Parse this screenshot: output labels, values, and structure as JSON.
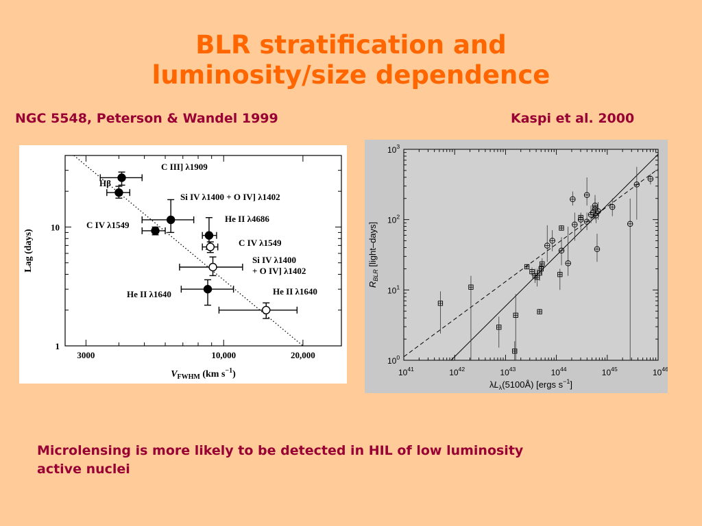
{
  "slide": {
    "title_line1": "BLR stratification and",
    "title_line2": "luminosity/size dependence",
    "left_caption": "NGC 5548, Peterson & Wandel  1999",
    "right_caption": "Kaspi et al. 2000",
    "footer_line1": "Microlensing is more likely to be detected in HIL of low luminosity",
    "footer_line2": "active nuclei"
  },
  "chart_data": [
    {
      "type": "scatter",
      "title": "",
      "xlabel": "V_FWHM (km s^-1)",
      "ylabel": "Lag (days)",
      "x_scale": "log",
      "y_scale": "log",
      "xlim": [
        2500,
        28000
      ],
      "ylim": [
        1,
        40
      ],
      "x_ticks": [
        {
          "value": 3000,
          "label": "3000"
        },
        {
          "value": 10000,
          "label": "10,000"
        },
        {
          "value": 20000,
          "label": "20,000"
        }
      ],
      "y_ticks": [
        {
          "value": 1,
          "label": "1"
        },
        {
          "value": 10,
          "label": "10"
        }
      ],
      "fit_line": {
        "style": "dotted",
        "x": [
          2700,
          20000
        ],
        "y": [
          40,
          1
        ]
      },
      "points": [
        {
          "label": "C III] λ1909",
          "x": 4100,
          "y": 26,
          "xerr": [
            3400,
            4900
          ],
          "yerr": [
            22.5,
            29
          ],
          "filled": true
        },
        {
          "label": "Hβ",
          "x": 4000,
          "y": 19.5,
          "xerr": [
            3600,
            4400
          ],
          "yerr": [
            17.5,
            22
          ],
          "filled": true
        },
        {
          "label": "Si IV λ1400 + O IV] λ1402",
          "x": 6300,
          "y": 11.5,
          "xerr": [
            4900,
            7700
          ],
          "yerr": [
            9,
            17
          ],
          "filled": true
        },
        {
          "label": "C IV λ1549",
          "x": 5500,
          "y": 9.3,
          "xerr": [
            4900,
            6000
          ],
          "yerr": [
            8.6,
            10
          ],
          "filled": true
        },
        {
          "label": "He II λ4686",
          "x": 8800,
          "y": 8.5,
          "xerr": [
            8300,
            9400
          ],
          "yerr": [
            6.5,
            12
          ],
          "filled": true
        },
        {
          "label": "C IV λ1549",
          "x": 8900,
          "y": 6.8,
          "xerr": [
            8300,
            9500
          ],
          "yerr": [
            6.1,
            7.5
          ],
          "filled": false
        },
        {
          "label": "Si IV λ1400 + O IV] λ1402",
          "x": 9100,
          "y": 4.6,
          "xerr": [
            6800,
            11800
          ],
          "yerr": [
            3.9,
            5.6
          ],
          "filled": false
        },
        {
          "label": "He II λ1640",
          "x": 8700,
          "y": 3,
          "xerr": [
            6900,
            10900
          ],
          "yerr": [
            2.2,
            3.6
          ],
          "filled": true
        },
        {
          "label": "He II λ1640",
          "x": 14500,
          "y": 2,
          "xerr": [
            9600,
            19000
          ],
          "yerr": [
            1.7,
            2.3
          ],
          "filled": false
        }
      ]
    },
    {
      "type": "scatter",
      "title": "",
      "xlabel": "λL_λ(5100Å) [ergs s^-1]",
      "ylabel": "R_BLR [light-days]",
      "x_scale": "log",
      "y_scale": "log",
      "xlim": [
        1e+41,
        1e+46
      ],
      "ylim": [
        1,
        1000
      ],
      "x_ticks": [
        {
          "exp": 41,
          "label": "10",
          "sup": "41"
        },
        {
          "exp": 42,
          "label": "10",
          "sup": "42"
        },
        {
          "exp": 43,
          "label": "10",
          "sup": "43"
        },
        {
          "exp": 44,
          "label": "10",
          "sup": "44"
        },
        {
          "exp": 45,
          "label": "10",
          "sup": "45"
        },
        {
          "exp": 46,
          "label": "10",
          "sup": "46"
        }
      ],
      "y_ticks": [
        {
          "exp": 0,
          "label": "10",
          "sup": "0"
        },
        {
          "exp": 1,
          "label": "10",
          "sup": "1"
        },
        {
          "exp": 2,
          "label": "10",
          "sup": "2"
        },
        {
          "exp": 3,
          "label": "10",
          "sup": "3"
        }
      ],
      "fit_lines": [
        {
          "style": "solid",
          "logx": [
            41.93,
            46
          ],
          "logy": [
            0,
            2.93
          ]
        },
        {
          "style": "dashed",
          "logx": [
            41,
            46
          ],
          "logy": [
            0.05,
            2.72
          ]
        }
      ],
      "series": [
        {
          "marker": "square",
          "points": [
            {
              "logx": 41.72,
              "logy": 0.81,
              "ylo": 0.38,
              "yhi": 0.98
            },
            {
              "logx": 42.32,
              "logy": 1.04,
              "ylo": -0.2,
              "yhi": 1.2
            },
            {
              "logx": 42.87,
              "logy": 0.47,
              "ylo": 0.18,
              "yhi": 0.62
            },
            {
              "logx": 43.18,
              "logy": 0.13,
              "ylo": -0.2,
              "yhi": 0.27
            },
            {
              "logx": 43.2,
              "logy": 0.64,
              "ylo": -0.2,
              "yhi": 0.94
            },
            {
              "logx": 43.42,
              "logy": 1.33,
              "ylo": 1.31,
              "yhi": 1.35
            },
            {
              "logx": 43.52,
              "logy": 1.26,
              "ylo": 1.2,
              "yhi": 1.32
            },
            {
              "logx": 43.58,
              "logy": 1.2,
              "ylo": 1.1,
              "yhi": 1.3
            },
            {
              "logx": 43.62,
              "logy": 1.18,
              "ylo": 1.05,
              "yhi": 1.3
            },
            {
              "logx": 43.67,
              "logy": 1.24,
              "ylo": 1.13,
              "yhi": 1.35
            },
            {
              "logx": 43.67,
              "logy": 0.69,
              "ylo": 0.66,
              "yhi": 0.73
            },
            {
              "logx": 43.7,
              "logy": 1.3,
              "ylo": 1.22,
              "yhi": 1.38
            },
            {
              "logx": 43.72,
              "logy": 1.37,
              "ylo": 1.3,
              "yhi": 1.45
            },
            {
              "logx": 44.07,
              "logy": 1.22,
              "ylo": 1.0,
              "yhi": 1.3
            },
            {
              "logx": 44.1,
              "logy": 1.88,
              "ylo": 1.85,
              "yhi": 1.92
            },
            {
              "logx": 44.48,
              "logy": 2.03,
              "ylo": 1.98,
              "yhi": 2.08
            }
          ]
        },
        {
          "marker": "circle",
          "points": [
            {
              "logx": 43.82,
              "logy": 1.63,
              "ylo": 1.4,
              "yhi": 1.92
            },
            {
              "logx": 43.92,
              "logy": 1.7,
              "ylo": 1.55,
              "yhi": 1.85
            },
            {
              "logx": 44.1,
              "logy": 1.56,
              "ylo": 1.35,
              "yhi": 1.75
            },
            {
              "logx": 44.23,
              "logy": 1.38,
              "ylo": 1.2,
              "yhi": 1.9
            },
            {
              "logx": 44.32,
              "logy": 2.29,
              "ylo": 2.2,
              "yhi": 2.4
            },
            {
              "logx": 44.36,
              "logy": 1.93,
              "ylo": 1.7,
              "yhi": 2.1
            },
            {
              "logx": 44.48,
              "logy": 2.0,
              "ylo": 1.85,
              "yhi": 2.1
            },
            {
              "logx": 44.6,
              "logy": 2.35,
              "ylo": 2.2,
              "yhi": 2.6
            },
            {
              "logx": 44.6,
              "logy": 1.97,
              "ylo": 1.85,
              "yhi": 2.1
            },
            {
              "logx": 44.68,
              "logy": 2.07,
              "ylo": 1.95,
              "yhi": 2.2
            },
            {
              "logx": 44.72,
              "logy": 2.1,
              "ylo": 2.0,
              "yhi": 2.2
            },
            {
              "logx": 44.76,
              "logy": 2.15,
              "ylo": 2.0,
              "yhi": 2.3
            },
            {
              "logx": 44.76,
              "logy": 2.2,
              "ylo": 2.05,
              "yhi": 2.35
            },
            {
              "logx": 44.78,
              "logy": 2.06,
              "ylo": 1.95,
              "yhi": 2.2
            },
            {
              "logx": 44.8,
              "logy": 1.58,
              "ylo": 1.4,
              "yhi": 1.8
            },
            {
              "logx": 44.82,
              "logy": 2.12,
              "ylo": 2.0,
              "yhi": 2.25
            },
            {
              "logx": 45.1,
              "logy": 2.18,
              "ylo": 2.05,
              "yhi": 2.3
            },
            {
              "logx": 45.45,
              "logy": 1.94,
              "ylo": 0.0,
              "yhi": 2.3
            },
            {
              "logx": 45.58,
              "logy": 2.5,
              "ylo": 2.0,
              "yhi": 2.75
            },
            {
              "logx": 45.85,
              "logy": 2.58,
              "ylo": 2.5,
              "yhi": 2.65
            }
          ]
        }
      ]
    }
  ]
}
